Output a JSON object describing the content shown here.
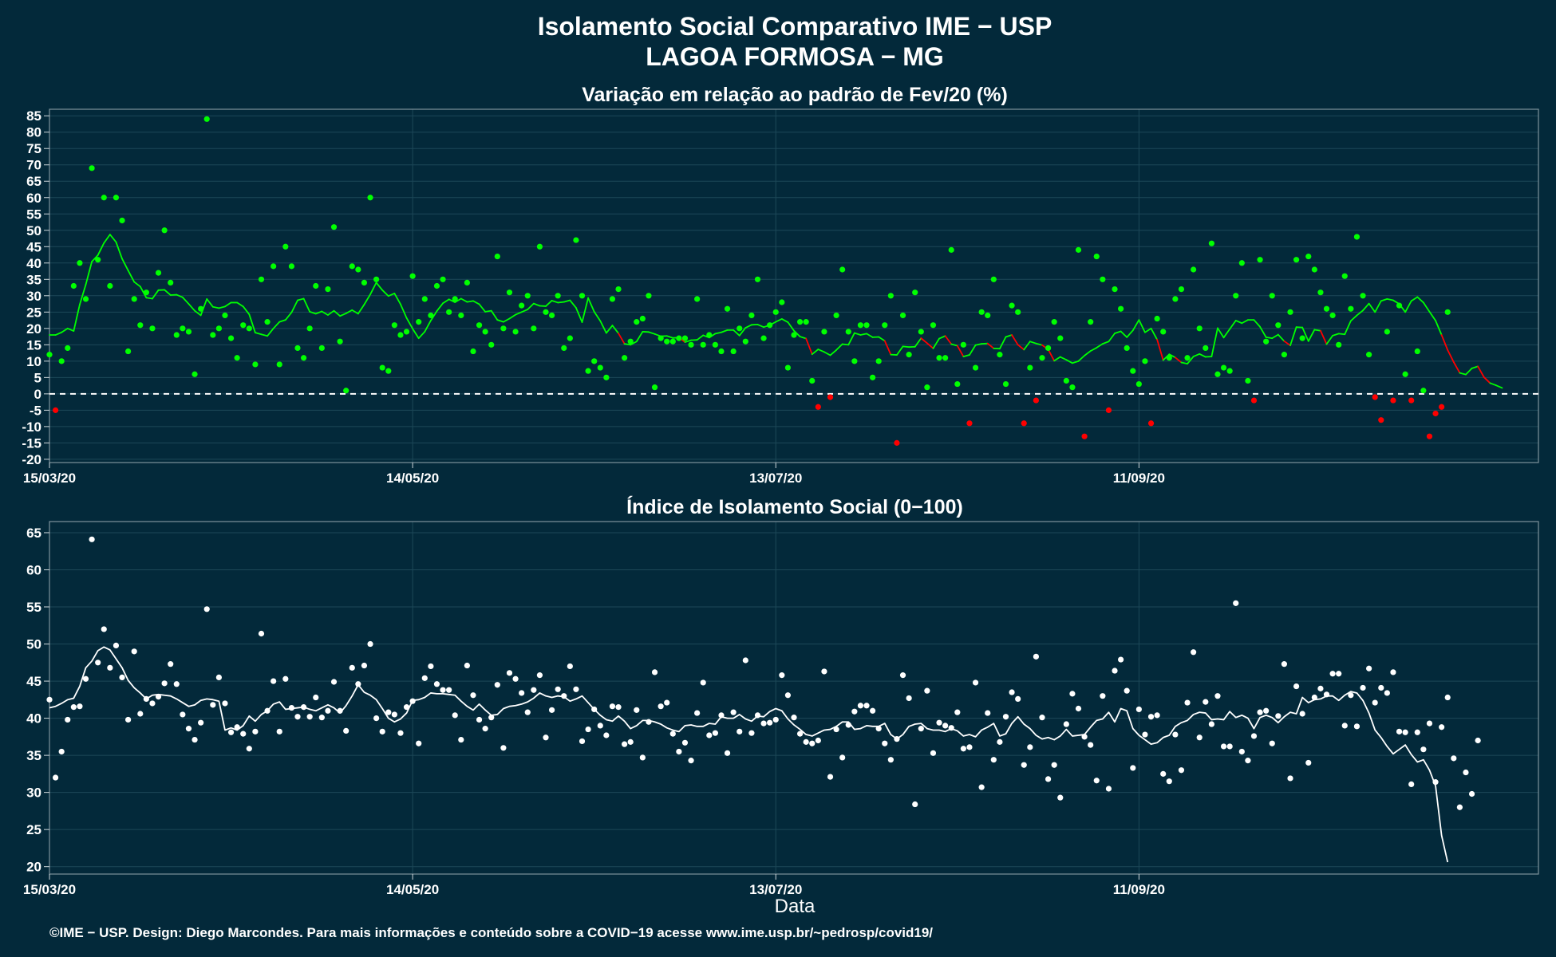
{
  "header": {
    "title_line1": "Isolamento Social Comparativo IME − USP",
    "title_line2": "LAGOA FORMOSA − MG"
  },
  "x_axis_label": "Data",
  "caption": "©IME − USP. Design: Diego Marcondes. Para mais informações e conteúdo sobre a COVID−19 acesse www.ime.usp.br/~pedrosp/covid19/",
  "colors": {
    "background": "#03293a",
    "positive": "#00ff00",
    "negative": "#ff0000",
    "index": "#ffffff",
    "grid": "#1d4858"
  },
  "chart_data": [
    {
      "type": "scatter",
      "title": "Variação em relação ao padrão de Fev/20 (%)",
      "x_start": "15/03/20",
      "x_end": "16/11/20",
      "xticks": [
        "15/03/20",
        "14/05/20",
        "13/07/20",
        "11/09/20"
      ],
      "ylim": [
        -21,
        87
      ],
      "yticks": [
        -20,
        -15,
        -10,
        -5,
        0,
        5,
        10,
        15,
        20,
        25,
        30,
        35,
        40,
        45,
        50,
        55,
        60,
        65,
        70,
        75,
        80,
        85
      ],
      "reference_line": 0,
      "grid": true,
      "series": [
        {
          "kind": "points",
          "values": [
            12,
            -5,
            10,
            14,
            33,
            40,
            29,
            69,
            41,
            60,
            33,
            60,
            53,
            13,
            29,
            21,
            31,
            20,
            37,
            50,
            34,
            18,
            20,
            19,
            6,
            26,
            84,
            18,
            20,
            24,
            17,
            11,
            21,
            20,
            9,
            35,
            22,
            39,
            9,
            45,
            39,
            14,
            11,
            20,
            33,
            14,
            32,
            51,
            16,
            1,
            39,
            38,
            34,
            60,
            35,
            8,
            7,
            21,
            18,
            19,
            36,
            22,
            29,
            24,
            33,
            35,
            25,
            29,
            24,
            34,
            13,
            21,
            19,
            15,
            42,
            20,
            31,
            19,
            27,
            30,
            20,
            45,
            25,
            24,
            30,
            14,
            17,
            47,
            30,
            7,
            10,
            8,
            5,
            29,
            32,
            11,
            16,
            22,
            23,
            30,
            2,
            17,
            16,
            16,
            17,
            17,
            15,
            29,
            15,
            18,
            15,
            13,
            26,
            13,
            20,
            16,
            24,
            35,
            17,
            21,
            25,
            28,
            8,
            18,
            22,
            22,
            4,
            -4,
            19,
            -1,
            24,
            38,
            19,
            10,
            21,
            21,
            5,
            10,
            21,
            30,
            -15,
            24,
            12,
            31,
            19,
            2,
            21,
            11,
            11,
            44,
            3,
            15,
            -9,
            8,
            25,
            24,
            35,
            12,
            3,
            27,
            25,
            -9,
            8,
            -2,
            11,
            14,
            22,
            17,
            4,
            2,
            44,
            -13,
            22,
            42,
            35,
            -5,
            32,
            26,
            14,
            7,
            3,
            10,
            -9,
            23,
            19,
            11,
            29,
            32,
            11,
            38,
            20,
            14,
            46,
            6,
            8,
            7,
            30,
            40,
            4,
            -2,
            41,
            16,
            30,
            21,
            12,
            25,
            41,
            17,
            42,
            38,
            31,
            26,
            24,
            15,
            36,
            26,
            48,
            30,
            12,
            -1,
            -8,
            19,
            -2,
            27,
            6,
            -2,
            13,
            1,
            -13,
            -6,
            -4,
            25
          ],
          "negative_color": "#ff0000",
          "positive_color": "#00ff00"
        },
        {
          "kind": "moving_average",
          "values": [
            18.0,
            18.0,
            18.8,
            20.0,
            19.2,
            27.3,
            33.4,
            40.4,
            42.4,
            46.1,
            48.7,
            46.4,
            41.3,
            37.7,
            34.2,
            32.8,
            29.4,
            29.1,
            31.7,
            31.8,
            30.2,
            30.3,
            29.5,
            27.5,
            25.4,
            24.0,
            29.0,
            26.6,
            26.2,
            26.7,
            27.9,
            27.9,
            26.7,
            24.3,
            18.7,
            18.2,
            17.7,
            20.0,
            22.0,
            22.6,
            24.9,
            28.6,
            29.1,
            25.1,
            24.5,
            25.2,
            24.1,
            25.4,
            23.8,
            24.6,
            25.6,
            24.5,
            27.3,
            30.4,
            34.0,
            31.7,
            29.9,
            30.7,
            27.4,
            23.2,
            19.9,
            17.0,
            19.0,
            22.4,
            25.3,
            27.7,
            28.9,
            28.0,
            29.1,
            28.1,
            28.4,
            27.4,
            25.1,
            25.4,
            22.6,
            22.0,
            23.0,
            24.2,
            25.0,
            25.8,
            27.6,
            26.9,
            26.8,
            28.5,
            27.9,
            28.1,
            28.6,
            26.3,
            21.9,
            29.3,
            25.1,
            22.3,
            18.6,
            20.9,
            18.5,
            15.3,
            15.0,
            16.0,
            19.0,
            18.9,
            18.3,
            17.6,
            17.7,
            17.1,
            17.2,
            15.8,
            16.4,
            16.5,
            17.9,
            17.2,
            18.4,
            18.8,
            19.5,
            19.5,
            17.8,
            20.2,
            21.1,
            21.2,
            20.4,
            21.0,
            22.0,
            22.9,
            21.9,
            19.3,
            17.5,
            16.9,
            12.1,
            13.6,
            12.8,
            11.8,
            13.4,
            15.2,
            15.0,
            18.6,
            18.0,
            18.4,
            17.3,
            17.4,
            16.2,
            12.0,
            11.9,
            14.5,
            14.3,
            14.4,
            17.0,
            15.5,
            13.9,
            16.9,
            17.7,
            15.2,
            14.7,
            11.4,
            11.9,
            14.9,
            15.3,
            15.4,
            13.9,
            13.8,
            17.4,
            18.0,
            15.0,
            13.5,
            16.0,
            15.4,
            14.9,
            13.6,
            10.1,
            11.3,
            10.4,
            9.4,
            10.0,
            11.7,
            13.1,
            14.1,
            15.3,
            16.0,
            18.5,
            19.1,
            17.3,
            19.4,
            22.6,
            18.8,
            20.0,
            16.6,
            10.3,
            12.1,
            11.1,
            9.6,
            9.2,
            11.4,
            12.2,
            11.3,
            11.4,
            20.1,
            17.2,
            19.8,
            22.4,
            21.6,
            22.6,
            22.6,
            20.5,
            17.3,
            17.0,
            18.1,
            16.1,
            14.8,
            20.4,
            20.3,
            16.1,
            19.6,
            19.3,
            15.2,
            17.8,
            18.4,
            18.2,
            22.3,
            24.0,
            25.5,
            27.6,
            25.0,
            28.4,
            29.0,
            28.6,
            27.5,
            25.0,
            28.4,
            29.6,
            27.9,
            25.1,
            22.4,
            18.0,
            13.4,
            9.7,
            6.4,
            5.9,
            7.8,
            8.4,
            5.1,
            3.3,
            2.6,
            1.8
          ]
        }
      ]
    },
    {
      "type": "scatter",
      "title": "Índice de Isolamento Social (0−100)",
      "x_start": "15/03/20",
      "x_end": "16/11/20",
      "xticks": [
        "15/03/20",
        "14/05/20",
        "13/07/20",
        "11/09/20"
      ],
      "ylim": [
        19,
        66.5
      ],
      "yticks": [
        20,
        25,
        30,
        35,
        40,
        45,
        50,
        55,
        60,
        65
      ],
      "grid": true,
      "series": [
        {
          "kind": "points",
          "values": [
            42.5,
            32.0,
            35.5,
            39.8,
            41.5,
            41.6,
            45.3,
            64.1,
            47.5,
            52.0,
            46.8,
            49.8,
            45.5,
            39.8,
            49.0,
            40.6,
            42.6,
            42.0,
            42.9,
            44.7,
            47.3,
            44.6,
            40.5,
            38.6,
            37.1,
            39.4,
            54.7,
            41.8,
            45.5,
            42.0,
            38.1,
            38.8,
            37.9,
            35.9,
            38.2,
            51.4,
            41.0,
            45.0,
            38.2,
            45.3,
            41.4,
            40.2,
            41.5,
            40.2,
            42.8,
            40.1,
            41.0,
            44.9,
            41.0,
            38.3,
            46.8,
            44.6,
            47.1,
            50.0,
            40.0,
            38.2,
            40.8,
            40.5,
            38.0,
            41.5,
            42.3,
            36.6,
            45.4,
            47.0,
            44.6,
            43.8,
            43.8,
            40.4,
            37.1,
            47.1,
            43.1,
            39.8,
            38.6,
            40.1,
            44.5,
            36.0,
            46.1,
            45.3,
            43.4,
            40.8,
            43.8,
            45.8,
            37.4,
            41.1,
            43.9,
            43.0,
            47.0,
            43.9,
            36.9,
            38.5,
            41.2,
            39.0,
            37.7,
            41.6,
            41.5,
            36.5,
            36.8,
            41.1,
            34.7,
            39.5,
            46.2,
            41.6,
            42.1,
            37.9,
            35.5,
            36.7,
            34.3,
            40.7,
            44.8,
            37.7,
            38.0,
            40.4,
            35.3,
            40.8,
            38.2,
            47.8,
            38.0,
            40.4,
            39.3,
            39.4,
            39.8,
            45.8,
            43.1,
            40.1,
            37.9,
            36.8,
            36.6,
            37.0,
            46.3,
            32.1,
            38.5,
            34.7,
            39.1,
            40.9,
            41.7,
            41.7,
            41.0,
            38.6,
            36.6,
            34.4,
            37.2,
            45.8,
            42.7,
            28.4,
            38.6,
            43.7,
            35.3,
            39.4,
            39.0,
            38.7,
            40.8,
            35.9,
            36.1,
            44.8,
            30.7,
            40.7,
            34.4,
            36.8,
            40.2,
            43.5,
            42.6,
            33.7,
            36.1,
            48.3,
            40.1,
            31.8,
            33.7,
            29.3,
            39.2,
            43.3,
            41.3,
            37.5,
            36.4,
            31.6,
            43.0,
            30.5,
            46.4,
            47.9,
            43.7,
            33.3,
            41.2,
            37.8,
            40.2,
            40.4,
            32.5,
            31.5,
            37.8,
            33.0,
            42.1,
            48.9,
            37.4,
            42.2,
            39.2,
            43.0,
            36.2,
            36.2,
            55.5,
            35.5,
            34.3,
            37.6,
            40.8,
            41.0,
            36.6,
            40.3,
            47.3,
            31.9,
            44.3,
            40.6,
            34.0,
            42.8,
            44.0,
            43.2,
            46.0,
            46.0,
            39.0,
            43.1,
            38.9,
            44.1,
            46.7,
            42.1,
            44.1,
            43.4,
            46.2,
            38.2,
            38.1,
            31.1,
            38.1,
            35.8,
            39.3,
            31.4,
            38.8,
            42.8,
            34.6,
            28.0,
            32.7,
            29.8,
            37.0
          ]
        },
        {
          "kind": "moving_average",
          "values": [
            41.4,
            41.6,
            42.0,
            42.5,
            42.7,
            44.3,
            46.8,
            47.7,
            49.1,
            49.6,
            49.2,
            48.0,
            46.8,
            45.1,
            44.1,
            43.4,
            42.6,
            43.1,
            43.2,
            43.1,
            43.0,
            42.6,
            42.1,
            41.6,
            41.8,
            42.4,
            42.6,
            42.5,
            42.3,
            38.4,
            38.7,
            38.4,
            39.0,
            40.3,
            39.6,
            40.5,
            41.0,
            41.9,
            42.2,
            41.2,
            41.3,
            41.4,
            41.5,
            41.2,
            41.0,
            41.4,
            41.8,
            41.4,
            40.7,
            41.7,
            43.0,
            44.5,
            43.5,
            43.1,
            42.5,
            41.3,
            40.0,
            39.5,
            39.9,
            40.7,
            42.4,
            42.5,
            42.8,
            43.4,
            43.3,
            43.3,
            43.2,
            43.1,
            42.3,
            41.6,
            41.1,
            41.9,
            41.1,
            40.4,
            40.5,
            41.3,
            41.6,
            41.7,
            41.9,
            42.2,
            42.7,
            43.4,
            43.0,
            42.8,
            43.0,
            42.9,
            42.3,
            42.6,
            43.0,
            42.1,
            41.2,
            40.4,
            39.8,
            39.6,
            40.3,
            39.6,
            38.6,
            39.0,
            39.7,
            39.7,
            39.5,
            39.2,
            38.7,
            38.4,
            38.2,
            39.0,
            39.1,
            38.9,
            38.9,
            39.3,
            39.2,
            40.2,
            40.0,
            40.0,
            40.5,
            39.9,
            39.6,
            40.3,
            40.2,
            40.9,
            41.3,
            41.0,
            39.9,
            39.1,
            38.5,
            37.8,
            37.6,
            38.0,
            38.4,
            38.5,
            38.9,
            39.5,
            39.5,
            38.5,
            38.6,
            39.0,
            38.9,
            38.9,
            39.3,
            37.8,
            37.2,
            37.8,
            38.9,
            39.2,
            39.3,
            38.6,
            38.4,
            38.4,
            38.2,
            38.6,
            38.3,
            37.6,
            37.8,
            37.5,
            38.4,
            38.8,
            39.3,
            37.6,
            37.9,
            39.3,
            40.2,
            39.2,
            38.6,
            37.7,
            37.2,
            37.4,
            37.1,
            37.6,
            38.5,
            37.6,
            37.7,
            37.8,
            38.8,
            39.7,
            39.9,
            40.8,
            39.5,
            41.3,
            41.0,
            38.6,
            37.7,
            37.1,
            36.5,
            36.7,
            37.4,
            37.7,
            38.9,
            39.4,
            39.7,
            40.5,
            40.8,
            40.7,
            39.8,
            39.9,
            39.8,
            40.9,
            40.1,
            40.4,
            40.0,
            38.6,
            40.1,
            40.4,
            40.1,
            39.4,
            40.2,
            40.8,
            40.6,
            42.8,
            42.1,
            42.5,
            42.6,
            43.0,
            43.0,
            42.4,
            43.1,
            43.6,
            43.4,
            42.4,
            40.7,
            38.4,
            37.4,
            36.2,
            35.2,
            35.8,
            36.4,
            35.1,
            34.1,
            34.4,
            33.0,
            30.9,
            24.2,
            20.6
          ]
        }
      ]
    }
  ]
}
